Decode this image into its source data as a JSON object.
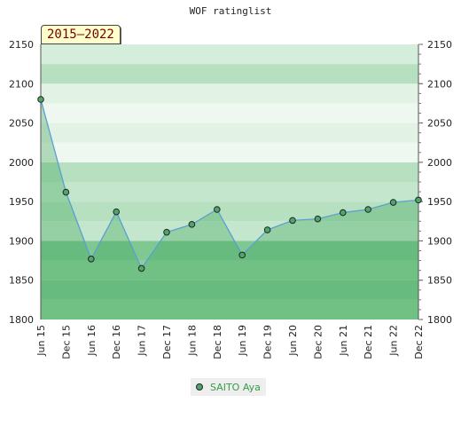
{
  "chart_data": {
    "type": "area",
    "title": "WOF ratinglist",
    "range_label": "2015–2022",
    "categories": [
      "Jun 15",
      "Dec 15",
      "Jun 16",
      "Dec 16",
      "Jun 17",
      "Dec 17",
      "Jun 18",
      "Dec 18",
      "Jun 19",
      "Dec 19",
      "Jun 20",
      "Dec 20",
      "Jun 21",
      "Dec 21",
      "Jun 22",
      "Dec 22"
    ],
    "series": [
      {
        "name": "SAITO Aya",
        "values": [
          2080,
          1962,
          1877,
          1937,
          1865,
          1911,
          1921,
          1940,
          1882,
          1914,
          1926,
          1928,
          1936,
          1940,
          1949,
          1952
        ]
      }
    ],
    "ylim": [
      1800,
      2150
    ],
    "yticks": [
      1800,
      1850,
      1900,
      1950,
      2000,
      2050,
      2100,
      2150
    ],
    "legend_position": "bottom",
    "colors": {
      "line": "#5a9fd4",
      "marker": "#4fa860",
      "text_accent": "#3a9a4a"
    }
  }
}
